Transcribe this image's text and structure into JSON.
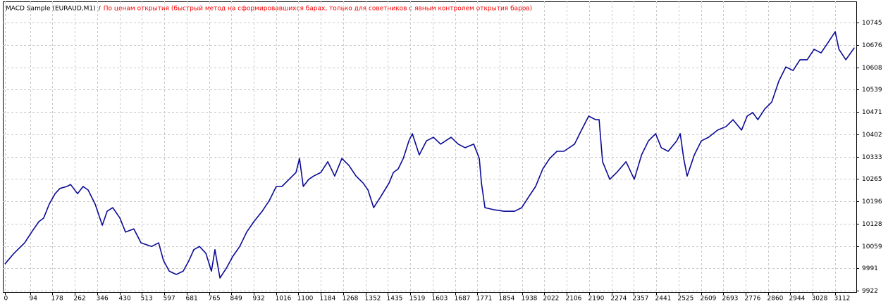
{
  "chart_data": {
    "type": "line",
    "title": "MACD Sample (EURAUD,M1)",
    "separator": "/",
    "subtitle": "По ценам открытия (быстрый метод на сформировавшихся барах, только для советников с явным контролем открытия баров)",
    "xlim": [
      -8,
      3191
    ],
    "ylim": [
      9918,
      10810
    ],
    "xticks": [
      0,
      94,
      178,
      262,
      346,
      430,
      513,
      597,
      681,
      765,
      849,
      932,
      1016,
      1100,
      1184,
      1268,
      1352,
      1435,
      1519,
      1603,
      1687,
      1771,
      1854,
      1938,
      2022,
      2106,
      2190,
      2274,
      2357,
      2441,
      2525,
      2609,
      2693,
      2776,
      2860,
      2944,
      3028,
      3112
    ],
    "yticks": [
      9922,
      9991,
      10059,
      10128,
      10196,
      10265,
      10333,
      10402,
      10471,
      10539,
      10608,
      10676,
      10745
    ],
    "grid": true,
    "series": [
      {
        "color": "#0a0a96",
        "x": [
          0,
          34,
          74,
          100,
          127,
          145,
          166,
          188,
          206,
          232,
          246,
          272,
          293,
          312,
          338,
          365,
          383,
          404,
          431,
          452,
          483,
          510,
          550,
          576,
          594,
          616,
          642,
          668,
          690,
          708,
          729,
          753,
          774,
          787,
          806,
          832,
          853,
          880,
          906,
          933,
          964,
          991,
          1017,
          1038,
          1065,
          1091,
          1104,
          1118,
          1139,
          1157,
          1184,
          1210,
          1236,
          1263,
          1289,
          1316,
          1342,
          1361,
          1382,
          1408,
          1440,
          1456,
          1474,
          1493,
          1514,
          1527,
          1553,
          1580,
          1606,
          1633,
          1672,
          1699,
          1725,
          1757,
          1778,
          1786,
          1799,
          1831,
          1871,
          1910,
          1937,
          1963,
          1989,
          2016,
          2042,
          2069,
          2095,
          2135,
          2161,
          2188,
          2214,
          2227,
          2240,
          2267,
          2293,
          2328,
          2359,
          2386,
          2412,
          2439,
          2460,
          2486,
          2518,
          2531,
          2544,
          2557,
          2584,
          2610,
          2637,
          2671,
          2703,
          2729,
          2761,
          2782,
          2803,
          2822,
          2848,
          2874,
          2901,
          2927,
          2954,
          2980,
          3007,
          3033,
          3059,
          3086,
          3112,
          3126,
          3152,
          3184
        ],
        "values": [
          10004,
          10037,
          10069,
          10102,
          10134,
          10145,
          10188,
          10220,
          10236,
          10242,
          10248,
          10220,
          10242,
          10231,
          10188,
          10123,
          10166,
          10177,
          10145,
          10102,
          10112,
          10069,
          10058,
          10069,
          10015,
          9982,
          9972,
          9982,
          10015,
          10048,
          10058,
          10037,
          9982,
          10048,
          9961,
          9994,
          10026,
          10058,
          10102,
          10134,
          10166,
          10199,
          10242,
          10242,
          10264,
          10285,
          10328,
          10242,
          10264,
          10274,
          10285,
          10318,
          10274,
          10328,
          10307,
          10274,
          10253,
          10231,
          10177,
          10210,
          10253,
          10285,
          10296,
          10328,
          10382,
          10404,
          10339,
          10382,
          10393,
          10372,
          10393,
          10372,
          10361,
          10372,
          10328,
          10253,
          10177,
          10171,
          10166,
          10166,
          10177,
          10210,
          10242,
          10296,
          10328,
          10350,
          10350,
          10372,
          10415,
          10458,
          10447,
          10447,
          10318,
          10264,
          10285,
          10318,
          10264,
          10339,
          10382,
          10404,
          10361,
          10350,
          10382,
          10404,
          10328,
          10274,
          10339,
          10382,
          10393,
          10415,
          10426,
          10447,
          10415,
          10458,
          10469,
          10447,
          10480,
          10501,
          10566,
          10609,
          10598,
          10631,
          10631,
          10663,
          10652,
          10685,
          10717,
          10663,
          10631,
          10668
        ]
      }
    ]
  }
}
